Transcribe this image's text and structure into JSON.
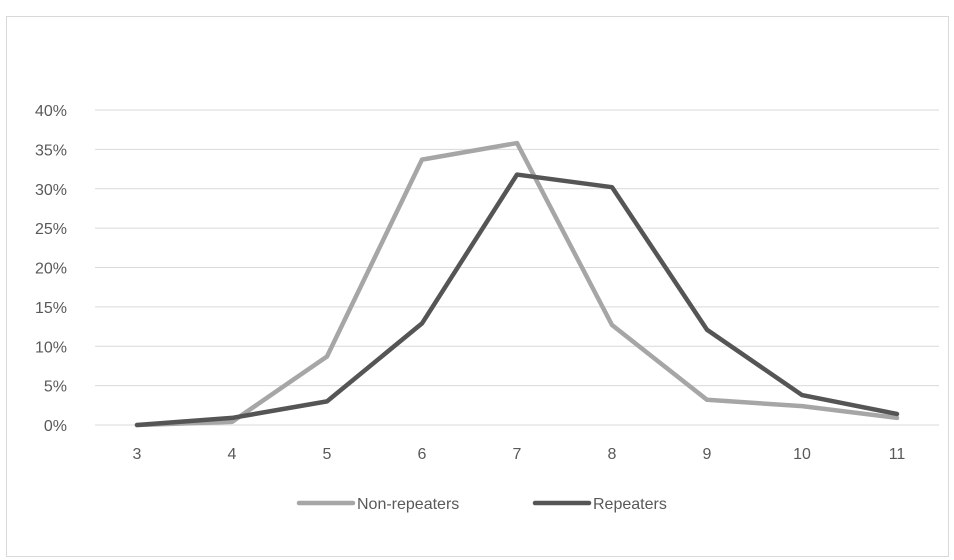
{
  "header": {
    "title_fragment": ""
  },
  "chart_data": {
    "type": "line",
    "categories": [
      "3",
      "4",
      "5",
      "6",
      "7",
      "8",
      "9",
      "10",
      "11"
    ],
    "y_ticks": [
      "0%",
      "5%",
      "10%",
      "15%",
      "20%",
      "25%",
      "30%",
      "35%",
      "40%"
    ],
    "ylim": [
      0,
      40
    ],
    "grid": true,
    "legend_position": "bottom",
    "series": [
      {
        "name": "Non-repeaters",
        "color": "#a6a6a6",
        "values": [
          0,
          0.4,
          8.7,
          33.7,
          35.8,
          12.7,
          3.2,
          2.4,
          0.9
        ]
      },
      {
        "name": "Repeaters",
        "color": "#555555",
        "values": [
          0,
          0.9,
          3.0,
          12.9,
          31.8,
          30.2,
          12.1,
          3.8,
          1.4
        ]
      }
    ]
  }
}
